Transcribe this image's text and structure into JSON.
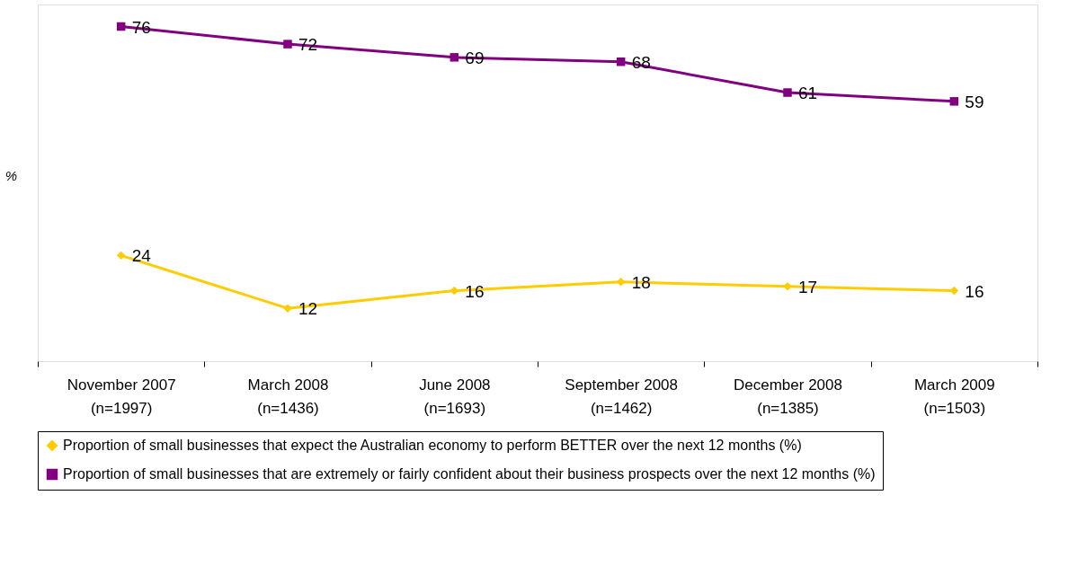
{
  "chart_data": {
    "type": "line",
    "ylabel": "%",
    "categories": [
      "November 2007\n(n=1997)",
      "March 2008\n(n=1436)",
      "June 2008\n(n=1693)",
      "September 2008\n(n=1462)",
      "December 2008\n(n=1385)",
      "March 2009\n(n=1503)"
    ],
    "series": [
      {
        "name": "Proportion of small businesses that expect the Australian economy to perform BETTER over the next 12 months (%)",
        "color": "#ffcc00",
        "marker": "diamond",
        "values": [
          24,
          12,
          16,
          18,
          17,
          16
        ]
      },
      {
        "name": "Proportion of small businesses that are extremely or fairly confident about their business prospects over the next 12 months (%)",
        "color": "#800080",
        "marker": "square",
        "values": [
          76,
          72,
          69,
          68,
          61,
          59
        ]
      }
    ],
    "ylim": [
      0,
      81
    ],
    "tick_labels": "x",
    "data_labels": true,
    "grid": false,
    "legend": "bottom",
    "line_style": "solid"
  }
}
